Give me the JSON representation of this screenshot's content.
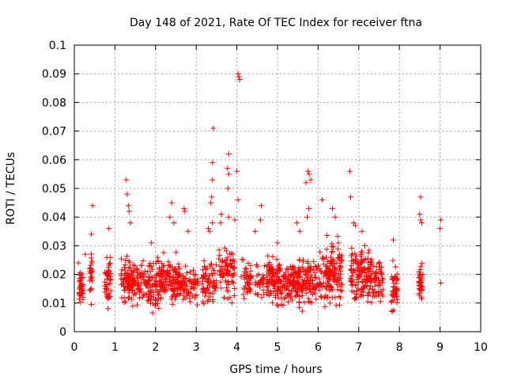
{
  "chart_data": {
    "type": "scatter",
    "title": "Day 148 of 2021, Rate Of TEC Index for receiver ftna",
    "xlabel": "GPS time / hours",
    "ylabel": "ROTI / TECUs",
    "xlim": [
      0,
      10
    ],
    "ylim": [
      0,
      0.1
    ],
    "x_ticks": [
      "0",
      "1",
      "2",
      "3",
      "4",
      "5",
      "6",
      "7",
      "8",
      "9",
      "10"
    ],
    "y_ticks": [
      "0",
      "0.01",
      "0.02",
      "0.03",
      "0.04",
      "0.05",
      "0.06",
      "0.07",
      "0.08",
      "0.09",
      "0.1"
    ],
    "grid": true,
    "marker": "+",
    "series": [
      {
        "name": "ROTI",
        "color": "#ff0000",
        "clusters": [
          {
            "x": [
              0.12,
              0.22
            ],
            "y": [
              0.007,
              0.024
            ],
            "n": 40
          },
          {
            "x": [
              0.38,
              0.45
            ],
            "y": [
              0.007,
              0.03
            ],
            "n": 25
          },
          {
            "x": [
              0.75,
              0.9
            ],
            "y": [
              0.004,
              0.03
            ],
            "n": 45
          },
          {
            "x": [
              1.15,
              1.6
            ],
            "y": [
              0.007,
              0.028
            ],
            "n": 110
          },
          {
            "x": [
              1.6,
              2.05
            ],
            "y": [
              0.006,
              0.028
            ],
            "n": 90
          },
          {
            "x": [
              2.05,
              2.6
            ],
            "y": [
              0.006,
              0.03
            ],
            "n": 140
          },
          {
            "x": [
              2.6,
              3.05
            ],
            "y": [
              0.007,
              0.025
            ],
            "n": 70
          },
          {
            "x": [
              3.15,
              3.5
            ],
            "y": [
              0.005,
              0.028
            ],
            "n": 70
          },
          {
            "x": [
              3.55,
              3.95
            ],
            "y": [
              0.008,
              0.033
            ],
            "n": 80
          },
          {
            "x": [
              4.1,
              4.35
            ],
            "y": [
              0.008,
              0.028
            ],
            "n": 40
          },
          {
            "x": [
              4.45,
              4.75
            ],
            "y": [
              0.008,
              0.025
            ],
            "n": 40
          },
          {
            "x": [
              4.75,
              5.2
            ],
            "y": [
              0.006,
              0.03
            ],
            "n": 110
          },
          {
            "x": [
              5.2,
              5.8
            ],
            "y": [
              0.006,
              0.028
            ],
            "n": 150
          },
          {
            "x": [
              5.8,
              6.2
            ],
            "y": [
              0.007,
              0.03
            ],
            "n": 70
          },
          {
            "x": [
              6.2,
              6.6
            ],
            "y": [
              0.007,
              0.035
            ],
            "n": 110
          },
          {
            "x": [
              6.8,
              7.3
            ],
            "y": [
              0.006,
              0.033
            ],
            "n": 130
          },
          {
            "x": [
              7.3,
              7.6
            ],
            "y": [
              0.007,
              0.028
            ],
            "n": 60
          },
          {
            "x": [
              7.8,
              7.95
            ],
            "y": [
              0.004,
              0.028
            ],
            "n": 45
          },
          {
            "x": [
              8.48,
              8.58
            ],
            "y": [
              0.008,
              0.027
            ],
            "n": 35
          }
        ],
        "highlights": [
          [
            0.1,
            0.024
          ],
          [
            0.27,
            0.027
          ],
          [
            0.45,
            0.044
          ],
          [
            0.42,
            0.034
          ],
          [
            0.85,
            0.036
          ],
          [
            1.28,
            0.053
          ],
          [
            1.3,
            0.048
          ],
          [
            1.33,
            0.044
          ],
          [
            1.38,
            0.038
          ],
          [
            1.35,
            0.042
          ],
          [
            1.9,
            0.031
          ],
          [
            2.4,
            0.045
          ],
          [
            2.35,
            0.04
          ],
          [
            2.45,
            0.038
          ],
          [
            2.7,
            0.043
          ],
          [
            2.72,
            0.042
          ],
          [
            2.8,
            0.035
          ],
          [
            3.33,
            0.035
          ],
          [
            3.3,
            0.036
          ],
          [
            3.42,
            0.071
          ],
          [
            3.4,
            0.059
          ],
          [
            3.4,
            0.053
          ],
          [
            3.38,
            0.047
          ],
          [
            3.36,
            0.045
          ],
          [
            3.4,
            0.038
          ],
          [
            3.6,
            0.038
          ],
          [
            3.62,
            0.041
          ],
          [
            3.8,
            0.062
          ],
          [
            3.77,
            0.057
          ],
          [
            3.8,
            0.055
          ],
          [
            3.78,
            0.05
          ],
          [
            3.8,
            0.04
          ],
          [
            3.95,
            0.039
          ],
          [
            4.0,
            0.056
          ],
          [
            4.03,
            0.046
          ],
          [
            4.03,
            0.09
          ],
          [
            4.05,
            0.089
          ],
          [
            4.07,
            0.088
          ],
          [
            4.45,
            0.035
          ],
          [
            4.58,
            0.039
          ],
          [
            4.6,
            0.044
          ],
          [
            5.0,
            0.031
          ],
          [
            5.48,
            0.038
          ],
          [
            5.55,
            0.035
          ],
          [
            5.7,
            0.052
          ],
          [
            5.75,
            0.056
          ],
          [
            5.78,
            0.055
          ],
          [
            5.82,
            0.053
          ],
          [
            5.77,
            0.043
          ],
          [
            5.73,
            0.04
          ],
          [
            6.1,
            0.046
          ],
          [
            6.35,
            0.043
          ],
          [
            6.42,
            0.04
          ],
          [
            6.78,
            0.056
          ],
          [
            6.8,
            0.047
          ],
          [
            6.88,
            0.038
          ],
          [
            6.92,
            0.037
          ],
          [
            7.08,
            0.035
          ],
          [
            7.15,
            0.03
          ],
          [
            7.85,
            0.032
          ],
          [
            8.52,
            0.047
          ],
          [
            8.5,
            0.041
          ],
          [
            8.52,
            0.039
          ],
          [
            8.55,
            0.038
          ],
          [
            9.02,
            0.039
          ],
          [
            9.0,
            0.036
          ],
          [
            9.02,
            0.017
          ]
        ]
      }
    ]
  }
}
